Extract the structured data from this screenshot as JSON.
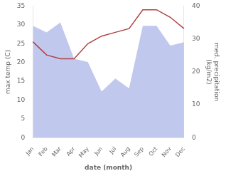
{
  "chart_data": {
    "type": "line",
    "categories": [
      "Jan",
      "Feb",
      "Mar",
      "Apr",
      "May",
      "Jun",
      "Jul",
      "Aug",
      "Sep",
      "Oct",
      "Nov",
      "Dec"
    ],
    "xlabel": "date (month)",
    "ylabel": "max temp (C)",
    "y2label": "med. precipitation\n(kg/m2)",
    "series": [
      {
        "type": "area",
        "axis": "y2",
        "color": "#c0c8ee",
        "values": [
          34.0,
          32.0,
          35.0,
          24.0,
          23.0,
          14.0,
          18.0,
          15.0,
          34.0,
          34.0,
          28.0,
          29.0
        ]
      },
      {
        "type": "line",
        "color": "#b04040",
        "values": [
          25.5,
          22.0,
          21.0,
          21.0,
          25.0,
          27.0,
          28.0,
          29.0,
          34.0,
          34.0,
          32.0,
          29.0
        ]
      }
    ],
    "ylim": [
      0,
      35
    ],
    "yticks": [
      0,
      5,
      10,
      15,
      20,
      25,
      30,
      35
    ],
    "y2lim": [
      0,
      40
    ],
    "y2ticks": [
      0,
      10,
      20,
      30,
      40
    ],
    "grid": false
  }
}
